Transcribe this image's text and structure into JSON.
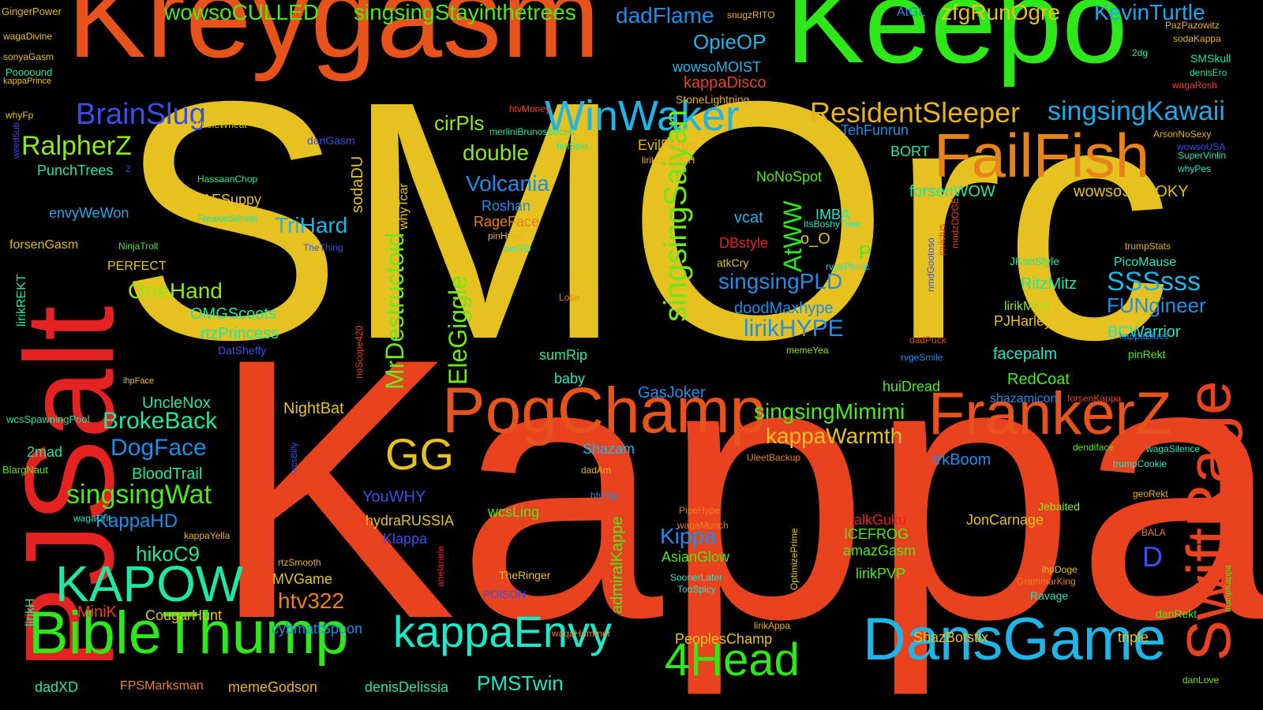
{
  "words": [
    {
      "text": "SMOrc",
      "color": "#e5c21f"
    },
    {
      "text": "Kappa",
      "color": "#e8431e"
    },
    {
      "text": "Kreygasm",
      "color": "#e8531c"
    },
    {
      "text": "Keepo",
      "color": "#2ee81a"
    },
    {
      "text": "PJSalt",
      "color": "#e52222"
    },
    {
      "text": "FailFish",
      "color": "#e8831c"
    },
    {
      "text": "WinWaker",
      "color": "#1fb5e8"
    },
    {
      "text": "PogChamp",
      "color": "#e8531c"
    },
    {
      "text": "FrankerZ",
      "color": "#e8531c"
    },
    {
      "text": "SwiftRage",
      "color": "#e8431e"
    },
    {
      "text": "BibleThump",
      "color": "#2ee81a"
    },
    {
      "text": "DansGame",
      "color": "#1fb5e8"
    },
    {
      "text": "kappaEnvy",
      "color": "#1fe8c8"
    },
    {
      "text": "KAPOW",
      "color": "#1fe8a0"
    },
    {
      "text": "4Head",
      "color": "#2ee81a"
    },
    {
      "text": "GG",
      "color": "#e5c21f"
    },
    {
      "text": "BrainSlug",
      "color": "#3b4fe8"
    },
    {
      "text": "ResidentSleeper",
      "color": "#e8b21c"
    },
    {
      "text": "singsingKawaii",
      "color": "#1fa8e8"
    },
    {
      "text": "RalpherZ",
      "color": "#8ee81a"
    },
    {
      "text": "cirPls",
      "color": "#8ee81a"
    },
    {
      "text": "double",
      "color": "#8ee81a"
    },
    {
      "text": "Volcania",
      "color": "#1f8ee8"
    },
    {
      "text": "singsingSaiyan",
      "color": "#6ee81a"
    },
    {
      "text": "MrDestructoid",
      "color": "#6ee81a"
    },
    {
      "text": "EleGiggle",
      "color": "#6ee81a"
    },
    {
      "text": "AtWW",
      "color": "#2ee81a"
    },
    {
      "text": "SSSsss",
      "color": "#1fb5e8"
    },
    {
      "text": "singsingPLD",
      "color": "#1f8ee8"
    },
    {
      "text": "lirikHYPE",
      "color": "#1f8ee8"
    },
    {
      "text": "singsingMimimi",
      "color": "#4ee81a"
    },
    {
      "text": "kappaWarmth",
      "color": "#e5c21f"
    },
    {
      "text": "singsingWat",
      "color": "#4ee81a"
    },
    {
      "text": "DogFace",
      "color": "#1f8ee8"
    },
    {
      "text": "BrokeBack",
      "color": "#1fe8a0"
    },
    {
      "text": "OneHand",
      "color": "#8ee81a"
    },
    {
      "text": "TriHard",
      "color": "#1fb5e8"
    },
    {
      "text": "wowsoCULLED",
      "color": "#4ee81a"
    },
    {
      "text": "singsingStayinthetrees",
      "color": "#4ee81a"
    },
    {
      "text": "dadFlame",
      "color": "#1f8ee8"
    },
    {
      "text": "zfgRunOgre",
      "color": "#e5c21f"
    },
    {
      "text": "KevinTurtle",
      "color": "#1fa8e8"
    },
    {
      "text": "OpieOP",
      "color": "#1fb5e8"
    },
    {
      "text": "wowsoMOIST",
      "color": "#1fb5e8"
    },
    {
      "text": "kappaDisco",
      "color": "#e8431e"
    },
    {
      "text": "StoneLightning",
      "color": "#e8b21c"
    },
    {
      "text": "TehFunrun",
      "color": "#1f8ee8"
    },
    {
      "text": "EvilFetus",
      "color": "#e8b21c"
    },
    {
      "text": "lirikCLENCH",
      "color": "#e8b21c"
    },
    {
      "text": "NoNoSpot",
      "color": "#4ee81a"
    },
    {
      "text": "forsenWOW",
      "color": "#1fe8a0"
    },
    {
      "text": "wowsoSPOOKY",
      "color": "#e5c21f"
    },
    {
      "text": "vcat",
      "color": "#1fb5e8"
    },
    {
      "text": "IMBA",
      "color": "#1fe8c8"
    },
    {
      "text": "ItsBoshyTime",
      "color": "#1fe8c8"
    },
    {
      "text": "DBstyle",
      "color": "#e52222"
    },
    {
      "text": "o_O",
      "color": "#e5c21f"
    },
    {
      "text": "P",
      "color": "#4ee81a"
    },
    {
      "text": "rvgePicnic",
      "color": "#1fe8c8"
    },
    {
      "text": "atkCry",
      "color": "#e5c21f"
    },
    {
      "text": "doodMaxhype",
      "color": "#1f8ee8"
    },
    {
      "text": "FUNgineer",
      "color": "#1f8ee8"
    },
    {
      "text": "RitzMitz",
      "color": "#1fe8a0"
    },
    {
      "text": "PicoMause",
      "color": "#1fe8c8"
    },
    {
      "text": "JKanStyle",
      "color": "#1fe8a0"
    },
    {
      "text": "lirikMLG",
      "color": "#8ee81a"
    },
    {
      "text": "PJHarley",
      "color": "#e5c21f"
    },
    {
      "text": "BCWarrior",
      "color": "#1fe8c8"
    },
    {
      "text": "facepalm",
      "color": "#1fe8c8"
    },
    {
      "text": "pinRekt",
      "color": "#4ee81a"
    },
    {
      "text": "kappaBlues",
      "color": "#1f8ee8"
    },
    {
      "text": "dadPuck",
      "color": "#e8431e"
    },
    {
      "text": "rvgeSmile",
      "color": "#1f8ee8"
    },
    {
      "text": "memeYea",
      "color": "#8ee81a"
    },
    {
      "text": "huiDread",
      "color": "#4ee81a"
    },
    {
      "text": "RedCoat",
      "color": "#4ee81a"
    },
    {
      "text": "shazamicon",
      "color": "#1f8ee8"
    },
    {
      "text": "forsenKappa",
      "color": "#e8431e"
    },
    {
      "text": "GasJoker",
      "color": "#1f8ee8"
    },
    {
      "text": "baby",
      "color": "#1fe8c8"
    },
    {
      "text": "sumRip",
      "color": "#1fe8a0"
    },
    {
      "text": "Kippa",
      "color": "#1f8ee8"
    },
    {
      "text": "AsianGlow",
      "color": "#4ee81a"
    },
    {
      "text": "SoonerLater",
      "color": "#1fe8c8"
    },
    {
      "text": "TooSpicy",
      "color": "#1fe8c8"
    },
    {
      "text": "admiralKappe",
      "color": "#4ee81a"
    },
    {
      "text": "Shazam",
      "color": "#1fb5e8"
    },
    {
      "text": "dadAm",
      "color": "#e8b21c"
    },
    {
      "text": "htvRip",
      "color": "#1f8ee8"
    },
    {
      "text": "YouWHY",
      "color": "#3b4fe8"
    },
    {
      "text": "hydraRUSSIA",
      "color": "#e5c21f"
    },
    {
      "text": "wcsLing",
      "color": "#4ee81a"
    },
    {
      "text": "Klappa",
      "color": "#3b4fe8"
    },
    {
      "text": "TheRinger",
      "color": "#e5c21f"
    },
    {
      "text": "POISON",
      "color": "#3b4fe8"
    },
    {
      "text": "htv322",
      "color": "#e8831c"
    },
    {
      "text": "MVGame",
      "color": "#e5c21f"
    },
    {
      "text": "rtzSmooth",
      "color": "#e8b21c"
    },
    {
      "text": "cybmattSpoon",
      "color": "#1f8ee8"
    },
    {
      "text": "CougarHunt",
      "color": "#e5c21f"
    },
    {
      "text": "MiniK",
      "color": "#e8431e"
    },
    {
      "text": "hikoC9",
      "color": "#1fe8a0"
    },
    {
      "text": "KappaHD",
      "color": "#1f8ee8"
    },
    {
      "text": "BloodTrail",
      "color": "#1fe8a0"
    },
    {
      "text": "UncleNox",
      "color": "#1fe8a0"
    },
    {
      "text": "NightBat",
      "color": "#e5c21f"
    },
    {
      "text": "PMSTwin",
      "color": "#1fe8c8"
    },
    {
      "text": "memeGodson",
      "color": "#e8b21c"
    },
    {
      "text": "denisDelissia",
      "color": "#1fe8a0"
    },
    {
      "text": "FPSMarksman",
      "color": "#e8831c"
    },
    {
      "text": "dadXD",
      "color": "#1fe8a0"
    },
    {
      "text": "PeoplesChamp",
      "color": "#e5c21f"
    },
    {
      "text": "waqaHammer",
      "color": "#e8831c"
    },
    {
      "text": "lirikAppa",
      "color": "#e8b21c"
    },
    {
      "text": "ShazBotstix",
      "color": "#e5c21f"
    },
    {
      "text": "triple",
      "color": "#e5c21f"
    },
    {
      "text": "danLove",
      "color": "#6ee81a"
    },
    {
      "text": "danRekt",
      "color": "#4ee81a"
    },
    {
      "text": "trumpKappa",
      "color": "#4ee81a"
    },
    {
      "text": "OptimizePrime",
      "color": "#e5c21f"
    },
    {
      "text": "PipeHype",
      "color": "#e8831c"
    },
    {
      "text": "wagaMunch",
      "color": "#e8831c"
    },
    {
      "text": "alkGuku",
      "color": "#e52222"
    },
    {
      "text": "ICEFROG",
      "color": "#4ee81a"
    },
    {
      "text": "amazGasm",
      "color": "#4ee81a"
    },
    {
      "text": "lirikPVP",
      "color": "#4ee81a"
    },
    {
      "text": "JonCarnage",
      "color": "#e5c21f"
    },
    {
      "text": "Jebaited",
      "color": "#8ee81a"
    },
    {
      "text": "ihpDoge",
      "color": "#e5c21f"
    },
    {
      "text": "GrammarKing",
      "color": "#e8831c"
    },
    {
      "text": "Ravage",
      "color": "#1fe8c8"
    },
    {
      "text": "UleetBackup",
      "color": "#e8831c"
    },
    {
      "text": "trkBoom",
      "color": "#1f8ee8"
    },
    {
      "text": "dendiface",
      "color": "#4ee81a"
    },
    {
      "text": "wagaSilence",
      "color": "#1fe8c8"
    },
    {
      "text": "trumpCookie",
      "color": "#1fe8c8"
    },
    {
      "text": "geoRekt",
      "color": "#e8b21c"
    },
    {
      "text": "BALA",
      "color": "#e8831c"
    },
    {
      "text": "D",
      "color": "#3b4fe8"
    },
    {
      "text": "GingerPower",
      "color": "#e8b21c"
    },
    {
      "text": "wagaDivine",
      "color": "#e5c21f"
    },
    {
      "text": "sonyaGasm",
      "color": "#e5c21f"
    },
    {
      "text": "Poooound",
      "color": "#1fe8a0"
    },
    {
      "text": "kappaPrince",
      "color": "#e5c21f"
    },
    {
      "text": "whyFp",
      "color": "#e5c21f"
    },
    {
      "text": "weedSub",
      "color": "#3b4fe8"
    },
    {
      "text": "WholeWheat",
      "color": "#e5c21f"
    },
    {
      "text": "AtIvy",
      "color": "#e5c21f"
    },
    {
      "text": "danGasm",
      "color": "#3b4fe8"
    },
    {
      "text": "PunchTrees",
      "color": "#1fe8a0"
    },
    {
      "text": "Z",
      "color": "#3b4fe8"
    },
    {
      "text": "HassaanChop",
      "color": "#1fe8a0"
    },
    {
      "text": "DAESuppy",
      "color": "#e5c21f"
    },
    {
      "text": "FreakinStinkin",
      "color": "#1fe8a0"
    },
    {
      "text": "envyWeWon",
      "color": "#1fa8e8"
    },
    {
      "text": "NinjaTroll",
      "color": "#4ee81a"
    },
    {
      "text": "TheThing",
      "color": "#3b4fe8"
    },
    {
      "text": "forsenGasm",
      "color": "#e8b21c"
    },
    {
      "text": "PERFECT",
      "color": "#e5c21f"
    },
    {
      "text": "lirikREKT",
      "color": "#1fe8a0"
    },
    {
      "text": "OMGScoots",
      "color": "#1fe8a0"
    },
    {
      "text": "rtzPrincess",
      "color": "#1fe8a0"
    },
    {
      "text": "merliniPolice",
      "color": "#e52222"
    },
    {
      "text": "DatSheffy",
      "color": "#3b4fe8"
    },
    {
      "text": "ihpFace",
      "color": "#e5c21f"
    },
    {
      "text": "wcsSpawningPool",
      "color": "#1fe8a0"
    },
    {
      "text": "wcsBilly",
      "color": "#3b4fe8"
    },
    {
      "text": "2mad",
      "color": "#1fe8a0"
    },
    {
      "text": "BlargNaut",
      "color": "#4ee81a"
    },
    {
      "text": "wagaCrit",
      "color": "#1fe8c8"
    },
    {
      "text": "kappaYella",
      "color": "#e8b21c"
    },
    {
      "text": "lirikH",
      "color": "#1fe8a0"
    },
    {
      "text": "anelanele",
      "color": "#e52222"
    },
    {
      "text": "noScope420",
      "color": "#e8431e"
    },
    {
      "text": "sodaDU",
      "color": "#e5c21f"
    },
    {
      "text": "whyTcar",
      "color": "#e5c21f"
    },
    {
      "text": "Roshan",
      "color": "#1f8ee8"
    },
    {
      "text": "RageFace",
      "color": "#e8831c"
    },
    {
      "text": "pinHype",
      "color": "#e8b21c"
    },
    {
      "text": "aieGG",
      "color": "#1fe8c8"
    },
    {
      "text": "o",
      "color": "#e5c21f"
    },
    {
      "text": "Lose",
      "color": "#e8831c"
    },
    {
      "text": "htvMoney",
      "color": "#e8431e"
    },
    {
      "text": "merliniBrunosSecret",
      "color": "#1fe8a0"
    },
    {
      "text": "huiSolo",
      "color": "#1fe8a0"
    },
    {
      "text": "AtGL",
      "color": "#1f8ee8"
    },
    {
      "text": "snugzRITO",
      "color": "#e8b21c"
    },
    {
      "text": "BORT",
      "color": "#1fe8a0"
    },
    {
      "text": "invictus",
      "color": "#e8431e"
    },
    {
      "text": "modzDOGE",
      "color": "#e8431e"
    },
    {
      "text": "nmdGootoso",
      "color": "#3b4fe8"
    },
    {
      "text": "PazPazowitz",
      "color": "#e8b21c"
    },
    {
      "text": "sodaKappa",
      "color": "#e8b21c"
    },
    {
      "text": "SMSkull",
      "color": "#1fe8a0"
    },
    {
      "text": "denisEro",
      "color": "#1fe8a0"
    },
    {
      "text": "wagaRosh",
      "color": "#e8431e"
    },
    {
      "text": "2dg",
      "color": "#1fe8a0"
    },
    {
      "text": "ArsonNoSexy",
      "color": "#e8b21c"
    },
    {
      "text": "wowsoUSA",
      "color": "#3b4fe8"
    },
    {
      "text": "SuperVinlin",
      "color": "#1fe8c8"
    },
    {
      "text": "whyPes",
      "color": "#1fe8c8"
    },
    {
      "text": "trumpStats",
      "color": "#e8b21c"
    }
  ]
}
